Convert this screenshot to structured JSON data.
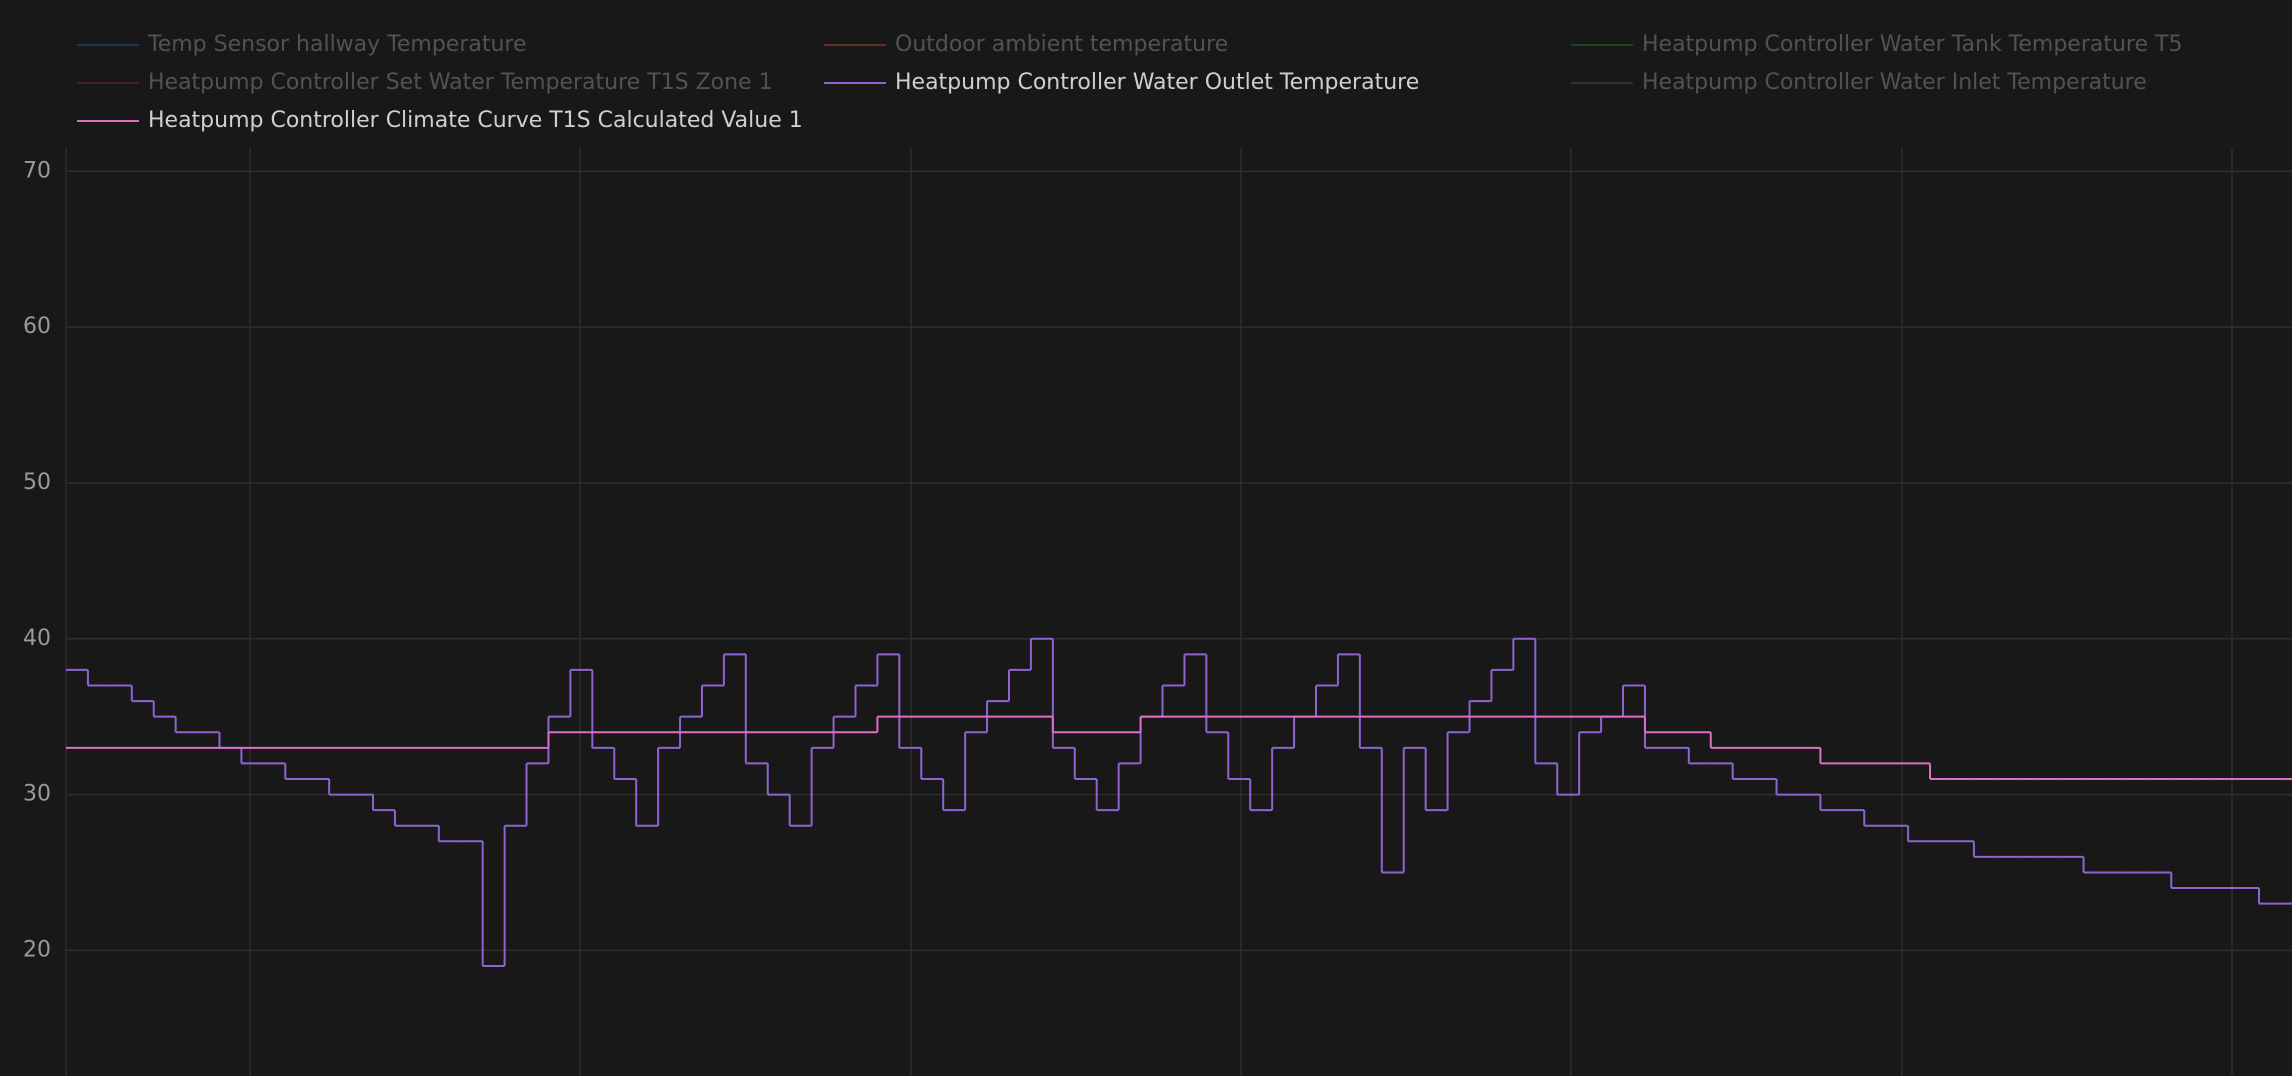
{
  "chart_data": {
    "type": "line",
    "step": true,
    "categories": [
      null,
      null,
      null,
      null,
      null,
      null,
      null,
      null,
      null,
      null,
      null,
      null,
      null,
      null,
      null,
      null,
      null,
      null,
      null,
      null,
      null,
      null,
      null,
      null,
      null,
      null,
      null,
      null,
      null,
      null,
      null,
      null,
      null,
      null,
      null,
      null,
      null,
      null,
      null,
      null,
      null,
      null,
      null,
      null,
      null,
      null,
      null,
      null,
      null,
      null,
      null,
      null,
      null,
      null,
      null,
      null,
      null,
      null,
      null,
      null,
      null,
      null,
      null,
      null,
      null,
      null,
      null,
      null,
      null,
      null,
      null,
      null,
      null,
      null,
      null,
      null,
      null,
      null,
      null,
      null,
      null,
      null,
      null,
      null,
      null,
      null,
      null,
      null,
      null,
      null,
      null,
      null,
      null,
      null,
      null,
      null,
      null,
      null,
      null,
      null,
      null,
      null
    ],
    "ylim": [
      12,
      71.5
    ],
    "yticks": [
      20,
      30,
      40,
      50,
      60,
      70
    ],
    "grid": true,
    "series": [
      {
        "name": "Temp Sensor hallway Temperature",
        "color": "#2c5d8f",
        "hidden": true
      },
      {
        "name": "Outdoor ambient temperature",
        "color": "#c0502c",
        "hidden": true
      },
      {
        "name": "Heatpump Controller Water Tank Temperature T5",
        "color": "#2e7d32",
        "hidden": true
      },
      {
        "name": "Heatpump Controller Set Water Temperature T1S Zone 1",
        "color": "#9c1c34",
        "hidden": true
      },
      {
        "name": "Heatpump Controller Water Outlet Temperature",
        "color": "#8e63d2",
        "hidden": false,
        "values": [
          38,
          37,
          37,
          36,
          35,
          34,
          34,
          33,
          32,
          32,
          31,
          31,
          30,
          30,
          29,
          28,
          28,
          27,
          27,
          19,
          28,
          32,
          35,
          38,
          33,
          31,
          28,
          33,
          35,
          37,
          39,
          32,
          30,
          28,
          33,
          35,
          37,
          39,
          33,
          31,
          29,
          34,
          36,
          38,
          40,
          33,
          31,
          29,
          32,
          35,
          37,
          39,
          34,
          31,
          29,
          33,
          35,
          37,
          39,
          33,
          25,
          33,
          29,
          34,
          36,
          38,
          40,
          32,
          30,
          34,
          35,
          37,
          33,
          33,
          32,
          32,
          31,
          31,
          30,
          30,
          29,
          29,
          28,
          28,
          27,
          27,
          27,
          26,
          26,
          26,
          26,
          26,
          25,
          25,
          25,
          25,
          24,
          24,
          24,
          24,
          23,
          23
        ]
      },
      {
        "name": "Heatpump Controller Water Inlet Temperature",
        "color": "#6a4457",
        "hidden": true
      },
      {
        "name": "Heatpump Controller Climate Curve T1S Calculated Value 1",
        "color": "#e06ccc",
        "hidden": false,
        "values": [
          33,
          33,
          33,
          33,
          33,
          33,
          33,
          33,
          33,
          33,
          33,
          33,
          33,
          33,
          33,
          33,
          33,
          33,
          33,
          33,
          33,
          33,
          34,
          34,
          34,
          34,
          34,
          34,
          34,
          34,
          34,
          34,
          34,
          34,
          34,
          34,
          34,
          35,
          35,
          35,
          35,
          35,
          35,
          35,
          35,
          34,
          34,
          34,
          34,
          35,
          35,
          35,
          35,
          35,
          35,
          35,
          35,
          35,
          35,
          35,
          35,
          35,
          35,
          35,
          35,
          35,
          35,
          35,
          35,
          35,
          35,
          35,
          34,
          34,
          34,
          33,
          33,
          33,
          33,
          33,
          32,
          32,
          32,
          32,
          32,
          31,
          31,
          31,
          31,
          31,
          31,
          31,
          31,
          31,
          31,
          31,
          31,
          31,
          31,
          31,
          31,
          31
        ]
      }
    ]
  }
}
